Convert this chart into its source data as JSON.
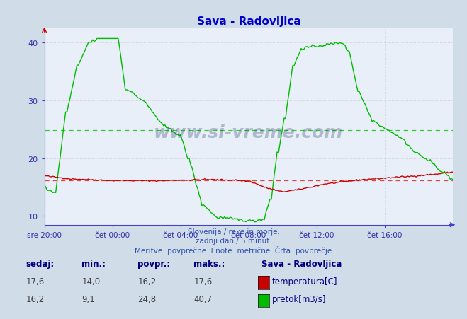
{
  "title": "Sava - Radovljica",
  "bg_color": "#d0dce8",
  "plot_bg_color": "#e8eff8",
  "temp_color": "#cc0000",
  "pretok_color": "#00bb00",
  "temp_avg_color": "#dd4444",
  "pretok_avg_color": "#33cc33",
  "avg_temp": 16.2,
  "avg_pretok": 24.8,
  "ylim": [
    8.5,
    42.5
  ],
  "yticks": [
    10,
    20,
    30,
    40
  ],
  "xtick_pos": [
    0,
    48,
    96,
    144,
    192,
    240
  ],
  "xlabel_ticks": [
    "sre 20:00",
    "čet 00:00",
    "čet 04:00",
    "čet 08:00",
    "čet 12:00",
    "čet 16:00"
  ],
  "footer_line1": "Slovenija / reke in morje.",
  "footer_line2": "zadnji dan / 5 minut.",
  "footer_line3": "Meritve: povprečne  Enote: metrične  Črta: povprečje",
  "table_headers": [
    "sedaj:",
    "min.:",
    "povpr.:",
    "maks.:"
  ],
  "table_row1": [
    "17,6",
    "14,0",
    "16,2",
    "17,6"
  ],
  "table_row2": [
    "16,2",
    "9,1",
    "24,8",
    "40,7"
  ],
  "legend_title": "Sava - Radovljica",
  "legend_items": [
    "temperatura[C]",
    "pretok[m3/s]"
  ],
  "legend_colors": [
    "#cc0000",
    "#00bb00"
  ],
  "spine_color": "#4040cc",
  "tick_color": "#3030aa",
  "text_color": "#3050b0",
  "table_header_color": "#000080",
  "table_val_color": "#404040"
}
